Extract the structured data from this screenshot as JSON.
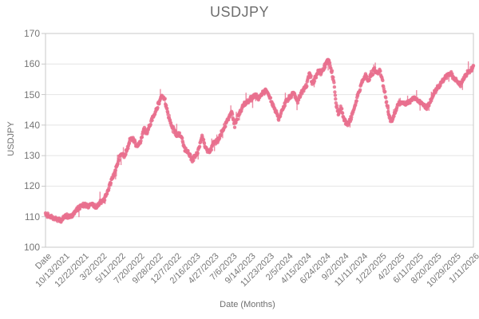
{
  "colors": {
    "accent": "#e8708e",
    "grid": "#e4e4e4",
    "axis": "#c9c9c9",
    "text": "#6f6f6f",
    "tick_text": "#767676",
    "background": "#ffffff"
  },
  "chart_data": {
    "type": "scatter",
    "title": "USDJPY",
    "xlabel": "Date (Months)",
    "ylabel": "USDJPY",
    "ylim": [
      100,
      170
    ],
    "grid": "horizontal",
    "legend": "none",
    "y_tick_labels": [
      "170",
      "160",
      "150",
      "140",
      "130",
      "120",
      "110",
      "100"
    ],
    "x_tick_labels": [
      "Date",
      "10/13/2021",
      "12/22/2021",
      "3/2/2022",
      "5/11/2022",
      "7/20/2022",
      "9/28/2022",
      "12/7/2022",
      "2/16/2023",
      "4/27/2023",
      "7/6/2023",
      "9/14/2023",
      "11/23/2023",
      "2/5/2024",
      "4/15/2024",
      "6/24/2024",
      "9/2/2024",
      "11/11/2024",
      "1/22/2025",
      "4/2/2025",
      "6/11/2025",
      "8/20/2025",
      "10/29/2025",
      "1/11/2026"
    ],
    "series": [
      {
        "name": "USDJPY",
        "marker_color": "#e8708e",
        "style": "dense-daily-scatter-band",
        "points": [
          [
            "8/4/2021",
            110.8
          ],
          [
            "8/22/2021",
            110.1
          ],
          [
            "9/12/2021",
            109.2
          ],
          [
            "10/3/2021",
            108.9
          ],
          [
            "10/22/2021",
            110.4
          ],
          [
            "11/6/2021",
            109.9
          ],
          [
            "11/24/2021",
            111.6
          ],
          [
            "12/12/2021",
            113.4
          ],
          [
            "12/30/2021",
            114.0
          ],
          [
            "1/14/2022",
            113.2
          ],
          [
            "1/29/2022",
            114.6
          ],
          [
            "2/11/2022",
            112.9
          ],
          [
            "3/1/2022",
            115.0
          ],
          [
            "3/16/2022",
            115.8
          ],
          [
            "4/3/2022",
            119.8
          ],
          [
            "4/21/2022",
            124.0
          ],
          [
            "5/9/2022",
            128.8
          ],
          [
            "5/21/2022",
            131.0
          ],
          [
            "5/30/2022",
            129.5
          ],
          [
            "6/12/2022",
            132.8
          ],
          [
            "6/24/2022",
            136.0
          ],
          [
            "7/6/2022",
            134.8
          ],
          [
            "7/18/2022",
            132.7
          ],
          [
            "7/30/2022",
            134.5
          ],
          [
            "8/11/2022",
            138.8
          ],
          [
            "8/23/2022",
            137.5
          ],
          [
            "9/10/2022",
            141.5
          ],
          [
            "9/22/2022",
            143.8
          ],
          [
            "10/4/2022",
            146.5
          ],
          [
            "10/20/2022",
            149.8
          ],
          [
            "10/29/2022",
            148.5
          ],
          [
            "11/10/2022",
            144.0
          ],
          [
            "11/25/2022",
            139.5
          ],
          [
            "12/13/2022",
            137.0
          ],
          [
            "12/31/2022",
            136.5
          ],
          [
            "1/12/2023",
            132.5
          ],
          [
            "1/27/2023",
            131.0
          ],
          [
            "2/11/2023",
            128.5
          ],
          [
            "3/2/2023",
            130.5
          ],
          [
            "3/20/2023",
            136.5
          ],
          [
            "4/4/2023",
            132.5
          ],
          [
            "4/16/2023",
            131.0
          ],
          [
            "5/4/2023",
            134.0
          ],
          [
            "5/22/2023",
            135.3
          ],
          [
            "6/3/2023",
            137.8
          ],
          [
            "6/22/2023",
            141.0
          ],
          [
            "7/10/2023",
            144.3
          ],
          [
            "7/22/2023",
            139.8
          ],
          [
            "8/6/2023",
            143.5
          ],
          [
            "8/27/2023",
            146.8
          ],
          [
            "9/17/2023",
            148.3
          ],
          [
            "10/8/2023",
            149.8
          ],
          [
            "10/21/2023",
            148.5
          ],
          [
            "11/8/2023",
            150.8
          ],
          [
            "11/20/2023",
            151.5
          ],
          [
            "12/8/2023",
            147.5
          ],
          [
            "12/23/2023",
            144.8
          ],
          [
            "1/4/2024",
            142.0
          ],
          [
            "1/25/2024",
            146.5
          ],
          [
            "2/12/2024",
            148.8
          ],
          [
            "3/2/2024",
            150.5
          ],
          [
            "3/17/2024",
            147.8
          ],
          [
            "4/1/2024",
            151.0
          ],
          [
            "4/19/2024",
            153.0
          ],
          [
            "5/1/2024",
            157.5
          ],
          [
            "5/10/2024",
            153.5
          ],
          [
            "5/22/2024",
            155.5
          ],
          [
            "6/3/2024",
            157.8
          ],
          [
            "6/15/2024",
            157.2
          ],
          [
            "6/28/2024",
            159.5
          ],
          [
            "7/10/2024",
            161.2
          ],
          [
            "7/19/2024",
            159.0
          ],
          [
            "7/31/2024",
            154.5
          ],
          [
            "8/9/2024",
            146.5
          ],
          [
            "8/18/2024",
            143.5
          ],
          [
            "8/27/2024",
            146.0
          ],
          [
            "9/5/2024",
            142.5
          ],
          [
            "9/14/2024",
            141.0
          ],
          [
            "9/23/2024",
            140.3
          ],
          [
            "10/5/2024",
            142.5
          ],
          [
            "10/20/2024",
            146.5
          ],
          [
            "11/4/2024",
            151.5
          ],
          [
            "11/17/2024",
            154.5
          ],
          [
            "11/29/2024",
            156.8
          ],
          [
            "12/8/2024",
            154.0
          ],
          [
            "12/20/2024",
            156.5
          ],
          [
            "1/1/2025",
            158.2
          ],
          [
            "1/10/2025",
            157.0
          ],
          [
            "1/22/2025",
            158.0
          ],
          [
            "2/3/2025",
            153.5
          ],
          [
            "2/15/2025",
            148.0
          ],
          [
            "2/27/2025",
            142.5
          ],
          [
            "3/8/2025",
            141.5
          ],
          [
            "3/21/2025",
            144.5
          ],
          [
            "4/2/2025",
            146.8
          ],
          [
            "4/17/2025",
            147.5
          ],
          [
            "5/2/2025",
            146.8
          ],
          [
            "5/17/2025",
            148.0
          ],
          [
            "6/1/2025",
            148.8
          ],
          [
            "6/16/2025",
            147.8
          ],
          [
            "7/1/2025",
            147.0
          ],
          [
            "7/17/2025",
            145.5
          ],
          [
            "8/1/2025",
            147.5
          ],
          [
            "8/16/2025",
            150.5
          ],
          [
            "8/31/2025",
            152.5
          ],
          [
            "9/15/2025",
            154.5
          ],
          [
            "9/30/2025",
            156.0
          ],
          [
            "10/15/2025",
            157.2
          ],
          [
            "10/30/2025",
            155.5
          ],
          [
            "11/12/2025",
            154.0
          ],
          [
            "11/24/2025",
            153.2
          ],
          [
            "12/6/2025",
            155.5
          ],
          [
            "12/18/2025",
            157.0
          ],
          [
            "12/30/2025",
            157.8
          ],
          [
            "1/11/2026",
            159.3
          ]
        ]
      }
    ]
  }
}
